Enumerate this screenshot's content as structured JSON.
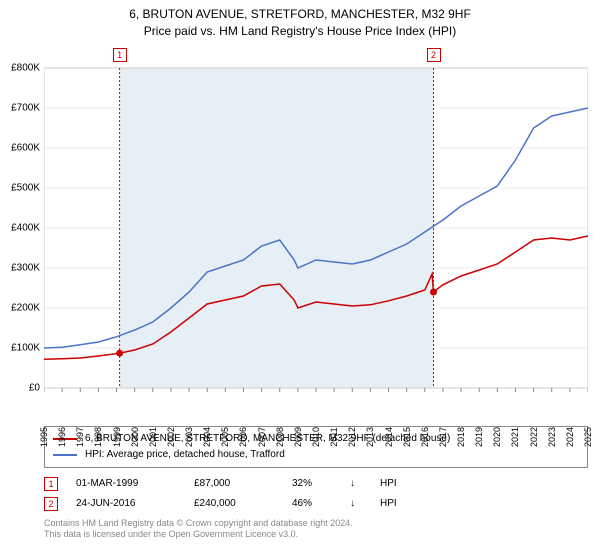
{
  "title": {
    "line1": "6, BRUTON AVENUE, STRETFORD, MANCHESTER, M32 9HF",
    "line2": "Price paid vs. HM Land Registry's House Price Index (HPI)"
  },
  "chart": {
    "type": "line",
    "background_color": "#ffffff",
    "plot_border_color": "#cccccc",
    "grid_color": "#eeeeee",
    "shaded_fill": "#e6eef6",
    "shaded_x_start": 1999.17,
    "shaded_x_end": 2016.48,
    "xlim": [
      1995,
      2025
    ],
    "ylim": [
      0,
      800000
    ],
    "yticks": [
      0,
      100000,
      200000,
      300000,
      400000,
      500000,
      600000,
      700000,
      800000
    ],
    "ytick_labels": [
      "£0",
      "£100K",
      "£200K",
      "£300K",
      "£400K",
      "£500K",
      "£600K",
      "£700K",
      "£800K"
    ],
    "xticks": [
      1995,
      1996,
      1997,
      1998,
      1999,
      2000,
      2001,
      2002,
      2003,
      2004,
      2005,
      2006,
      2007,
      2008,
      2009,
      2010,
      2011,
      2012,
      2013,
      2014,
      2015,
      2016,
      2017,
      2018,
      2019,
      2020,
      2021,
      2022,
      2023,
      2024,
      2025
    ],
    "title_fontsize": 12,
    "tick_fontsize": 10,
    "series": [
      {
        "name": "property",
        "label": "6, BRUTON AVENUE, STRETFORD, MANCHESTER, M32 9HF (detached house)",
        "color": "#cc0000",
        "line_width": 1.5,
        "data": [
          [
            1995,
            72000
          ],
          [
            1996,
            73000
          ],
          [
            1997,
            75000
          ],
          [
            1998,
            80000
          ],
          [
            1999.17,
            87000
          ],
          [
            2000,
            95000
          ],
          [
            2001,
            110000
          ],
          [
            2002,
            140000
          ],
          [
            2003,
            175000
          ],
          [
            2004,
            210000
          ],
          [
            2005,
            220000
          ],
          [
            2006,
            230000
          ],
          [
            2007,
            255000
          ],
          [
            2008,
            260000
          ],
          [
            2008.8,
            220000
          ],
          [
            2009,
            200000
          ],
          [
            2010,
            215000
          ],
          [
            2011,
            210000
          ],
          [
            2012,
            205000
          ],
          [
            2013,
            208000
          ],
          [
            2014,
            218000
          ],
          [
            2015,
            230000
          ],
          [
            2016,
            245000
          ],
          [
            2016.4,
            285000
          ],
          [
            2016.48,
            240000
          ],
          [
            2017,
            258000
          ],
          [
            2018,
            280000
          ],
          [
            2019,
            295000
          ],
          [
            2020,
            310000
          ],
          [
            2021,
            340000
          ],
          [
            2022,
            370000
          ],
          [
            2023,
            375000
          ],
          [
            2024,
            370000
          ],
          [
            2025,
            380000
          ]
        ]
      },
      {
        "name": "hpi",
        "label": "HPI: Average price, detached house, Trafford",
        "color": "#4a74c9",
        "line_width": 1.5,
        "data": [
          [
            1995,
            100000
          ],
          [
            1996,
            102000
          ],
          [
            1997,
            108000
          ],
          [
            1998,
            115000
          ],
          [
            1999,
            128000
          ],
          [
            2000,
            145000
          ],
          [
            2001,
            165000
          ],
          [
            2002,
            200000
          ],
          [
            2003,
            240000
          ],
          [
            2004,
            290000
          ],
          [
            2005,
            305000
          ],
          [
            2006,
            320000
          ],
          [
            2007,
            355000
          ],
          [
            2008,
            370000
          ],
          [
            2008.8,
            320000
          ],
          [
            2009,
            300000
          ],
          [
            2010,
            320000
          ],
          [
            2011,
            315000
          ],
          [
            2012,
            310000
          ],
          [
            2013,
            320000
          ],
          [
            2014,
            340000
          ],
          [
            2015,
            360000
          ],
          [
            2016,
            390000
          ],
          [
            2017,
            420000
          ],
          [
            2018,
            455000
          ],
          [
            2019,
            480000
          ],
          [
            2020,
            505000
          ],
          [
            2021,
            570000
          ],
          [
            2022,
            650000
          ],
          [
            2023,
            680000
          ],
          [
            2024,
            690000
          ],
          [
            2025,
            700000
          ]
        ]
      }
    ],
    "markers": [
      {
        "id": "1",
        "x": 1999.17,
        "y": 87000,
        "color": "#cc0000",
        "line_dash": "2,2"
      },
      {
        "id": "2",
        "x": 2016.48,
        "y": 240000,
        "color": "#cc0000",
        "line_dash": "2,2"
      }
    ]
  },
  "legend": {
    "border_color": "#888888",
    "fontsize": 10
  },
  "data_points": [
    {
      "id": "1",
      "date": "01-MAR-1999",
      "price": "£87,000",
      "pct": "32%",
      "direction": "↓",
      "vs": "HPI",
      "color": "#cc0000"
    },
    {
      "id": "2",
      "date": "24-JUN-2016",
      "price": "£240,000",
      "pct": "46%",
      "direction": "↓",
      "vs": "HPI",
      "color": "#cc0000"
    }
  ],
  "footer": {
    "line1": "Contains HM Land Registry data © Crown copyright and database right 2024.",
    "line2": "This data is licensed under the Open Government Licence v3.0."
  }
}
